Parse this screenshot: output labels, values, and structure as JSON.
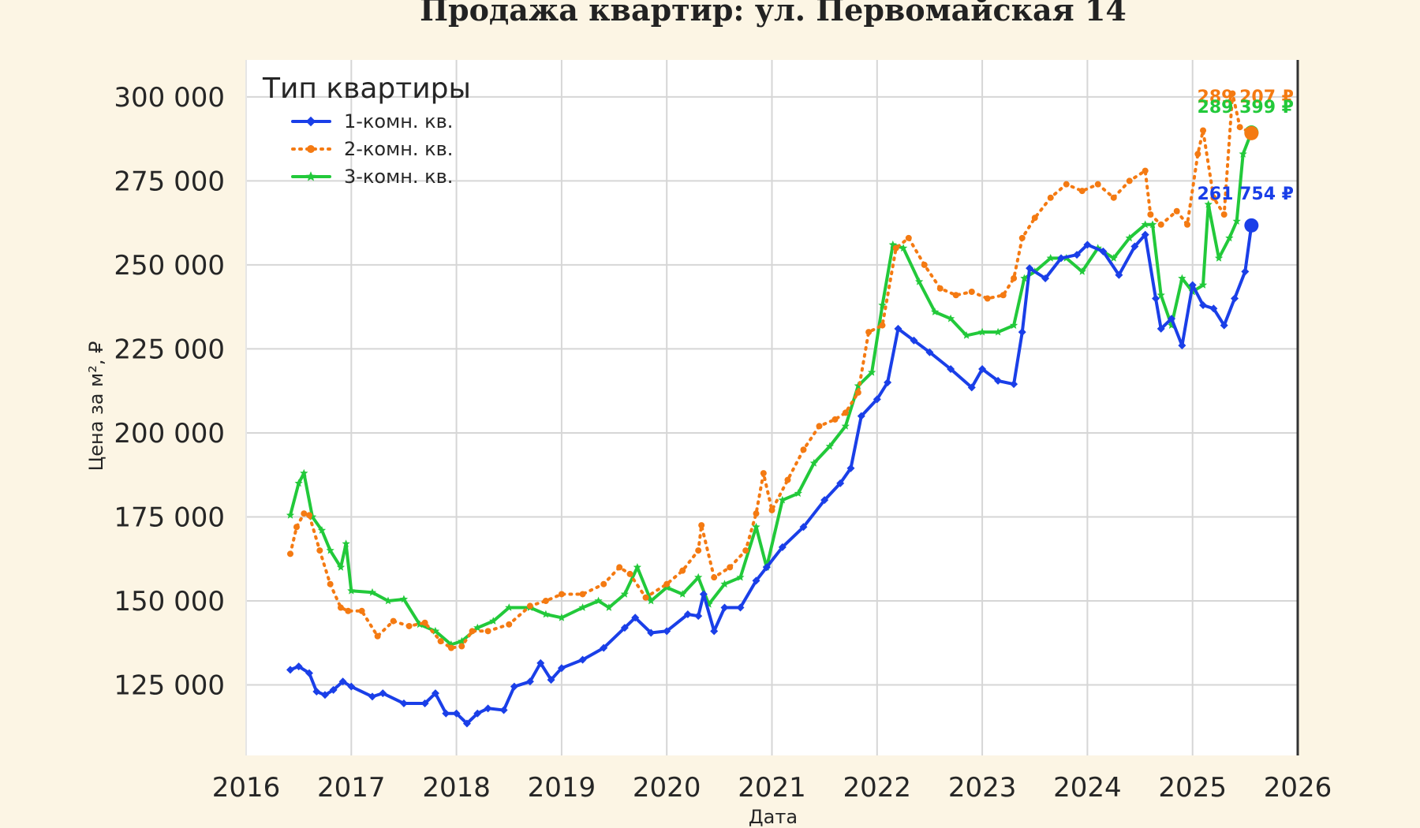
{
  "chart_data": {
    "type": "line",
    "title": "Продажа квартир: ул. Первомайская 14",
    "xlabel": "Дата",
    "ylabel": "Цена за м², ₽",
    "xlim": [
      2016,
      2026
    ],
    "ylim": [
      104000,
      311000
    ],
    "x_ticks": [
      2016,
      2017,
      2018,
      2019,
      2020,
      2021,
      2022,
      2023,
      2024,
      2025,
      2026
    ],
    "y_ticks": [
      125000,
      150000,
      175000,
      200000,
      225000,
      250000,
      275000,
      300000
    ],
    "y_tick_labels": [
      "125 000",
      "150 000",
      "175 000",
      "200 000",
      "225 000",
      "250 000",
      "275 000",
      "300 000"
    ],
    "grid": true,
    "legend": {
      "title": "Тип квартиры",
      "position": "top-left"
    },
    "series": [
      {
        "name": "1-комн. кв.",
        "color": "#1a3fe8",
        "style": "solid",
        "marker": "diamond",
        "x": [
          2016.42,
          2016.5,
          2016.6,
          2016.67,
          2016.75,
          2016.83,
          2016.92,
          2017.0,
          2017.2,
          2017.3,
          2017.5,
          2017.7,
          2017.8,
          2017.9,
          2018.0,
          2018.1,
          2018.2,
          2018.3,
          2018.45,
          2018.55,
          2018.7,
          2018.8,
          2018.9,
          2019.0,
          2019.2,
          2019.4,
          2019.6,
          2019.7,
          2019.85,
          2020.0,
          2020.2,
          2020.3,
          2020.35,
          2020.45,
          2020.55,
          2020.7,
          2020.85,
          2020.95,
          2021.1,
          2021.3,
          2021.5,
          2021.65,
          2021.75,
          2021.85,
          2022.0,
          2022.1,
          2022.2,
          2022.35,
          2022.5,
          2022.7,
          2022.9,
          2023.0,
          2023.15,
          2023.3,
          2023.38,
          2023.45,
          2023.6,
          2023.75,
          2023.9,
          2024.0,
          2024.15,
          2024.3,
          2024.45,
          2024.55,
          2024.65,
          2024.7,
          2024.8,
          2024.9,
          2025.0,
          2025.1,
          2025.2,
          2025.3,
          2025.4,
          2025.5,
          2025.56
        ],
        "y": [
          129500,
          130500,
          128500,
          123000,
          122000,
          123500,
          126000,
          124500,
          121500,
          122500,
          119500,
          119500,
          122500,
          116500,
          116500,
          113500,
          116500,
          118000,
          117500,
          124500,
          126000,
          131500,
          126500,
          130000,
          132500,
          136000,
          142000,
          145000,
          140500,
          141000,
          146000,
          145500,
          152000,
          141000,
          148000,
          148000,
          156000,
          160000,
          166000,
          172000,
          180000,
          185000,
          189500,
          205000,
          210000,
          215000,
          231000,
          227500,
          224000,
          219000,
          213500,
          219000,
          215500,
          214500,
          230000,
          249000,
          246000,
          252000,
          253000,
          256000,
          254000,
          247000,
          255500,
          259000,
          240000,
          231000,
          234000,
          226000,
          244000,
          238000,
          237000,
          232000,
          240000,
          248000,
          261754
        ]
      },
      {
        "name": "2-комн. кв.",
        "color": "#f47a12",
        "style": "dotted",
        "marker": "circle",
        "x": [
          2016.42,
          2016.48,
          2016.55,
          2016.6,
          2016.7,
          2016.8,
          2016.9,
          2016.97,
          2017.1,
          2017.25,
          2017.4,
          2017.55,
          2017.7,
          2017.85,
          2017.95,
          2018.05,
          2018.15,
          2018.3,
          2018.5,
          2018.7,
          2018.85,
          2019.0,
          2019.2,
          2019.4,
          2019.55,
          2019.65,
          2019.8,
          2020.0,
          2020.15,
          2020.3,
          2020.33,
          2020.45,
          2020.6,
          2020.75,
          2020.85,
          2020.92,
          2021.0,
          2021.15,
          2021.3,
          2021.45,
          2021.6,
          2021.7,
          2021.82,
          2021.92,
          2022.05,
          2022.18,
          2022.3,
          2022.45,
          2022.6,
          2022.75,
          2022.9,
          2023.05,
          2023.2,
          2023.3,
          2023.38,
          2023.5,
          2023.65,
          2023.8,
          2023.95,
          2024.1,
          2024.25,
          2024.4,
          2024.55,
          2024.6,
          2024.7,
          2024.85,
          2024.95,
          2025.05,
          2025.1,
          2025.2,
          2025.3,
          2025.38,
          2025.45,
          2025.56
        ],
        "y": [
          164000,
          172000,
          176000,
          175500,
          165000,
          155000,
          148000,
          147000,
          147000,
          139500,
          144000,
          142500,
          143500,
          138000,
          136000,
          136500,
          141000,
          141000,
          143000,
          148500,
          150000,
          152000,
          152000,
          155000,
          160000,
          158000,
          151000,
          155000,
          159000,
          165000,
          172500,
          157000,
          160000,
          165000,
          176000,
          188000,
          177000,
          186000,
          195000,
          202000,
          204000,
          206000,
          212000,
          230000,
          232000,
          255000,
          258000,
          250000,
          243000,
          241000,
          242000,
          240000,
          241000,
          246000,
          258000,
          264000,
          270000,
          274000,
          272000,
          274000,
          270000,
          275000,
          278000,
          265000,
          262000,
          266000,
          262000,
          283000,
          290000,
          270000,
          265000,
          301000,
          291000,
          289207
        ]
      },
      {
        "name": "3-комн. кв.",
        "color": "#22c93a",
        "style": "solid",
        "marker": "star",
        "x": [
          2016.42,
          2016.5,
          2016.55,
          2016.63,
          2016.72,
          2016.8,
          2016.9,
          2016.95,
          2017.0,
          2017.2,
          2017.35,
          2017.5,
          2017.65,
          2017.8,
          2017.95,
          2018.05,
          2018.2,
          2018.35,
          2018.5,
          2018.7,
          2018.85,
          2019.0,
          2019.2,
          2019.35,
          2019.45,
          2019.6,
          2019.72,
          2019.85,
          2020.0,
          2020.15,
          2020.3,
          2020.4,
          2020.55,
          2020.7,
          2020.85,
          2020.95,
          2021.1,
          2021.25,
          2021.4,
          2021.55,
          2021.7,
          2021.82,
          2021.95,
          2022.05,
          2022.15,
          2022.25,
          2022.4,
          2022.55,
          2022.7,
          2022.85,
          2023.0,
          2023.15,
          2023.3,
          2023.4,
          2023.5,
          2023.65,
          2023.8,
          2023.95,
          2024.1,
          2024.25,
          2024.4,
          2024.55,
          2024.62,
          2024.7,
          2024.8,
          2024.9,
          2025.0,
          2025.1,
          2025.15,
          2025.25,
          2025.35,
          2025.42,
          2025.48,
          2025.56
        ],
        "y": [
          175500,
          185000,
          188000,
          175000,
          171000,
          165000,
          160000,
          167000,
          153000,
          152500,
          150000,
          150500,
          143000,
          141000,
          137000,
          138000,
          142000,
          144000,
          148000,
          148000,
          146000,
          145000,
          148000,
          150000,
          148000,
          152000,
          160000,
          150000,
          154000,
          152000,
          157000,
          149000,
          155000,
          157000,
          172000,
          160000,
          180000,
          182000,
          191000,
          196000,
          202000,
          214000,
          218000,
          238000,
          256000,
          255000,
          245000,
          236000,
          234000,
          229000,
          230000,
          230000,
          232000,
          246000,
          248000,
          252000,
          252000,
          248000,
          255000,
          252000,
          258000,
          262000,
          262000,
          241000,
          232000,
          246000,
          242000,
          244000,
          268000,
          252000,
          258000,
          263000,
          283000,
          289399
        ]
      }
    ],
    "end_labels": [
      {
        "series": "2-комн. кв.",
        "text": "289 207 ₽"
      },
      {
        "series": "3-комн. кв.",
        "text": "289 399 ₽"
      },
      {
        "series": "1-комн. кв.",
        "text": "261 754 ₽"
      }
    ]
  }
}
